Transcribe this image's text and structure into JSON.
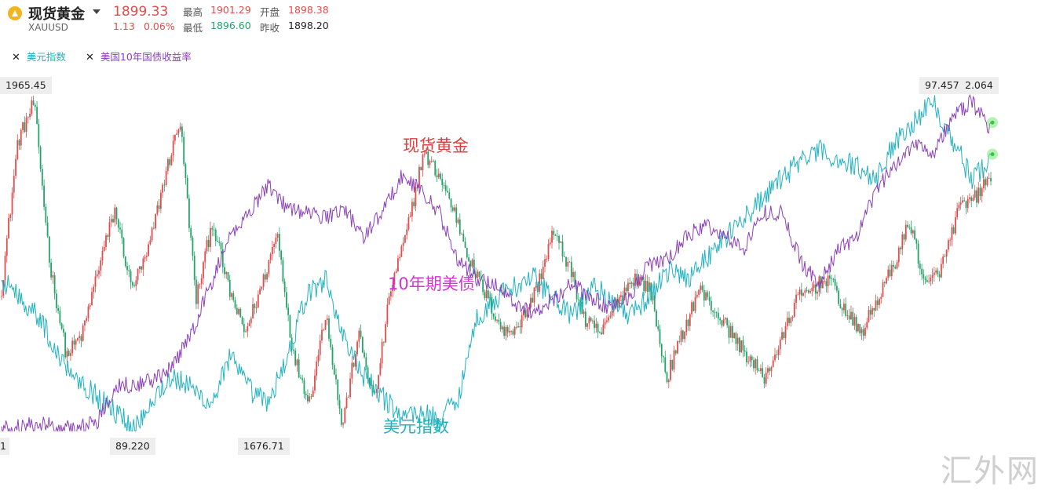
{
  "header": {
    "name": "现货黄金",
    "code": "XAUUSD",
    "price": "1899.33",
    "change": "1.13",
    "change_pct": "0.06%",
    "high_label": "最高",
    "high": "1901.29",
    "open_label": "开盘",
    "open": "1898.38",
    "low_label": "最低",
    "low": "1896.60",
    "prev_close_label": "昨收",
    "prev_close": "1898.20",
    "up_color": "#e24c4c",
    "down_color": "#26a36b"
  },
  "legend_tags": [
    {
      "label": "美元指数",
      "color": "#20b2c0"
    },
    {
      "label": "美国10年国债收益率",
      "color": "#8b3fb8"
    }
  ],
  "chart_data": {
    "type": "line",
    "series": [
      {
        "name": "现货黄金",
        "color_up": "#e24c4c",
        "color_down": "#26a36b",
        "keypoints": [
          1800,
          1930,
          1965.45,
          1820,
          1740,
          1760,
          1820,
          1870,
          1800,
          1830,
          1895,
          1950,
          1790,
          1860,
          1800,
          1760,
          1800,
          1850,
          1740,
          1700,
          1780,
          1676.71,
          1760,
          1700,
          1800,
          1850,
          1920,
          1900,
          1865,
          1820,
          1790,
          1760,
          1770,
          1800,
          1850,
          1820,
          1770,
          1760,
          1790,
          1810,
          1800,
          1720,
          1760,
          1800,
          1780,
          1760,
          1740,
          1720,
          1750,
          1790,
          1800,
          1810,
          1780,
          1760,
          1790,
          1820,
          1860,
          1800,
          1820,
          1870,
          1880,
          1899.33
        ]
      },
      {
        "name": "美元指数",
        "color": "#20b2c0",
        "keypoints": [
          93.0,
          92.5,
          92.0,
          91.0,
          90.5,
          90.0,
          89.6,
          89.22,
          90.0,
          90.5,
          90.2,
          89.8,
          91.0,
          90.2,
          89.8,
          91.0,
          92.5,
          93.0,
          91.5,
          90.5,
          90.0,
          89.5,
          89.6,
          89.4,
          90.0,
          92.0,
          92.5,
          92.8,
          93.0,
          92.5,
          92.0,
          92.8,
          92.5,
          92.0,
          92.5,
          93.2,
          93.0,
          93.5,
          94.0,
          94.5,
          95.0,
          95.5,
          96.0,
          96.2,
          96.0,
          95.8,
          95.5,
          96.5,
          97.0,
          97.457,
          96.5,
          95.5,
          96.0
        ]
      },
      {
        "name": "美国10年国债收益率",
        "color": "#8b3fb8",
        "keypoints": [
          0.7,
          0.7,
          0.72,
          0.7,
          0.7,
          0.72,
          0.88,
          0.88,
          0.9,
          0.95,
          1.1,
          1.3,
          1.5,
          1.6,
          1.72,
          1.62,
          1.6,
          1.58,
          1.62,
          1.5,
          1.6,
          1.75,
          1.7,
          1.6,
          1.4,
          1.32,
          1.3,
          1.22,
          1.18,
          1.24,
          1.3,
          1.24,
          1.2,
          1.25,
          1.38,
          1.4,
          1.5,
          1.55,
          1.5,
          1.45,
          1.6,
          1.6,
          1.4,
          1.3,
          1.45,
          1.5,
          1.7,
          1.8,
          1.9,
          1.85,
          2.0,
          2.064,
          1.95
        ]
      }
    ],
    "axis_labels": {
      "gold_max": "1965.45",
      "usd_min": "89.220",
      "gold_min": "1676.71",
      "usd_max": "97.457",
      "yield_max": "2.064",
      "left_edge_partial": "1"
    },
    "annotations": [
      {
        "text": "现货黄金",
        "color": "#e23c3c"
      },
      {
        "text": "10年期美债",
        "color": "#d233d2"
      },
      {
        "text": "美元指数",
        "color": "#20b2c0"
      }
    ],
    "grid": false
  },
  "watermark": "汇外网"
}
